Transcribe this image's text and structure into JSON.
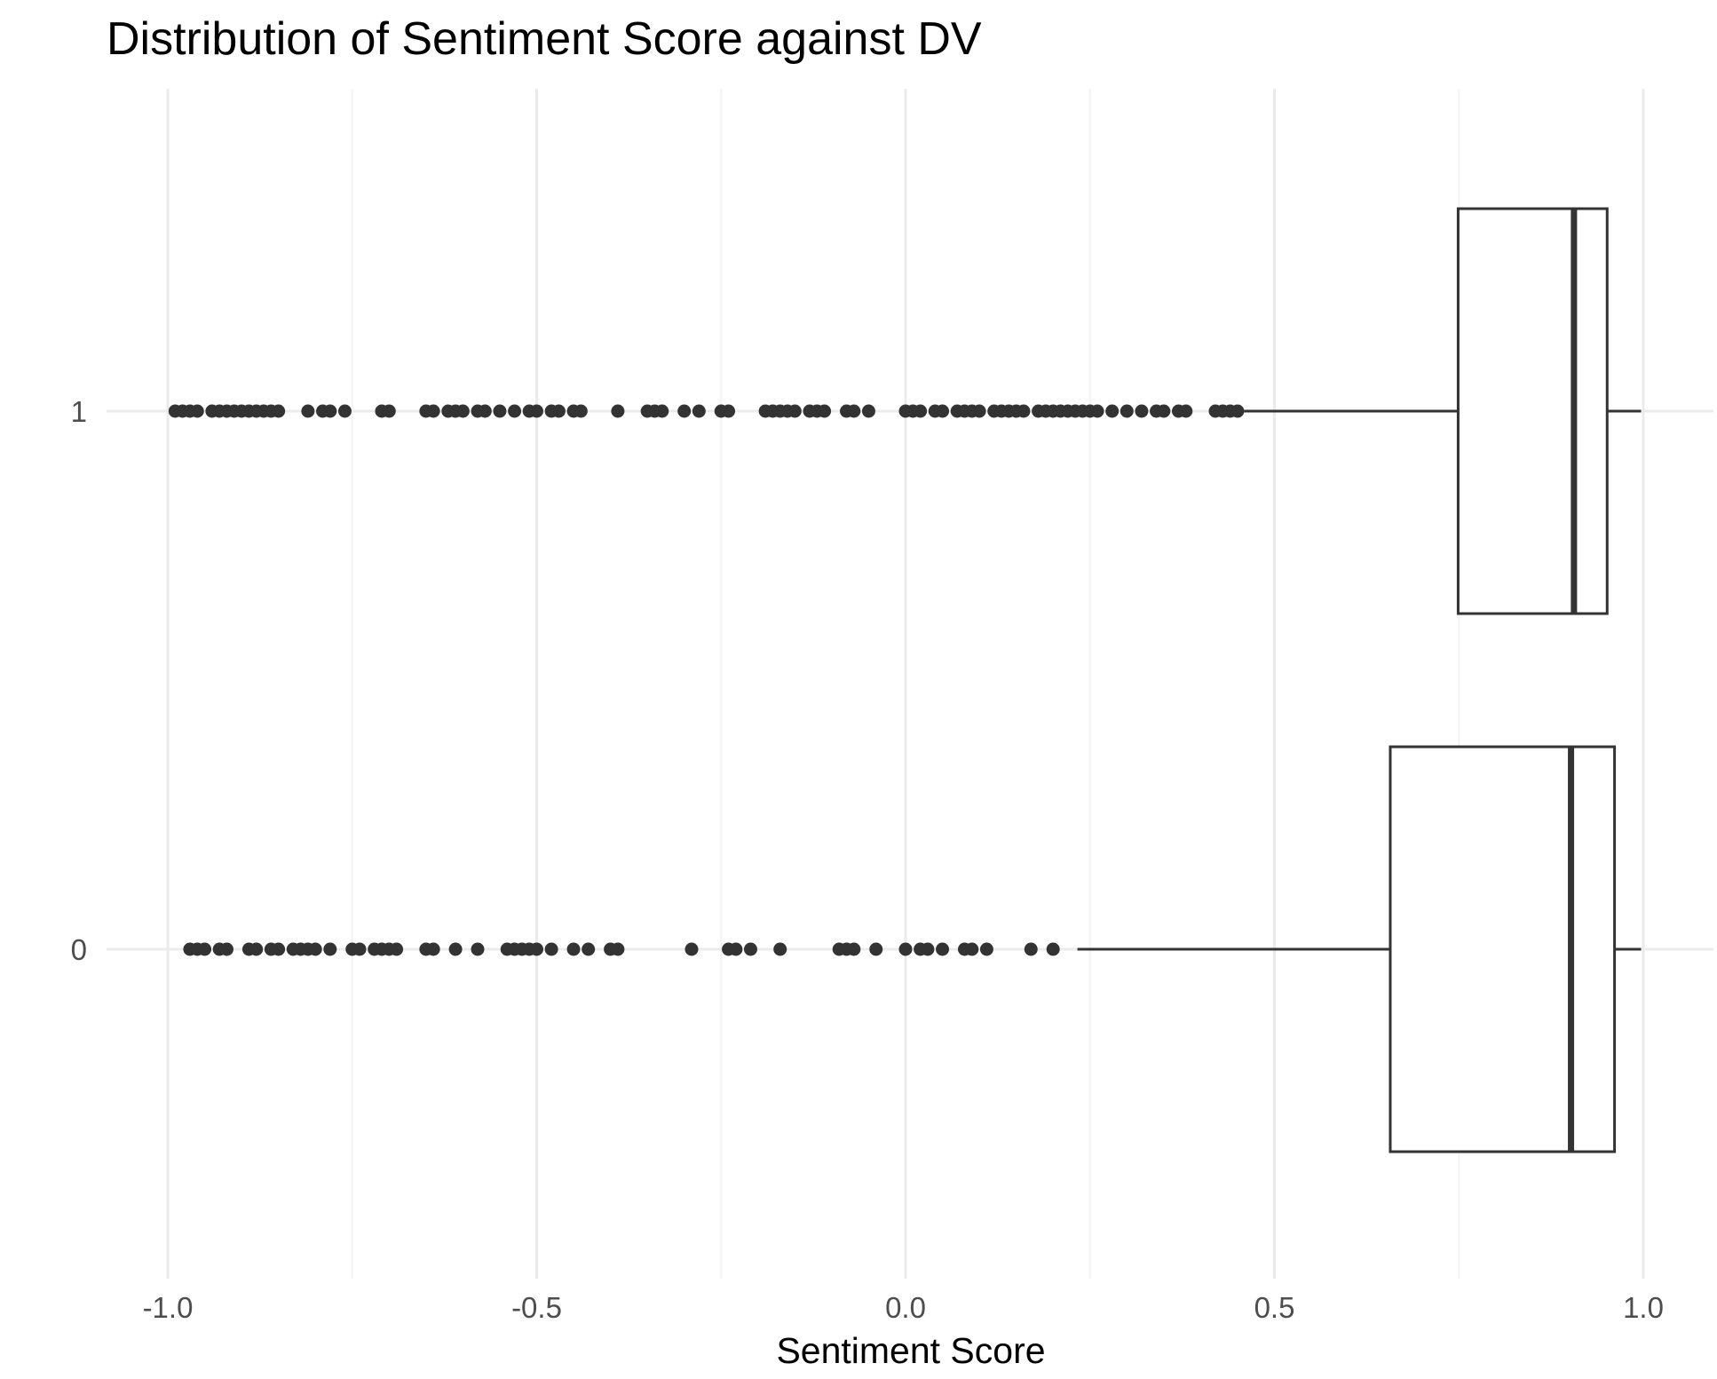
{
  "chart_data": {
    "type": "boxplot",
    "title": "Distribution of Sentiment Score against DV",
    "xlabel": "Sentiment Score",
    "ylabel": "",
    "orientation": "horizontal",
    "xlim": [
      -1.08,
      1.0
    ],
    "x_ticks": [
      -1.0,
      -0.5,
      0.0,
      0.5,
      1.0
    ],
    "x_tick_labels": [
      "-1.0",
      "-0.5",
      "0.0",
      "0.5",
      "1.0"
    ],
    "categories": [
      "0",
      "1"
    ],
    "grid": true,
    "legend": "none",
    "colors": {
      "box_stroke": "#333333",
      "outlier": "#333333",
      "grid_major": "#ebebeb",
      "grid_minor": "#f3f3f3",
      "axis_text": "#4d4d4d",
      "title": "#000000"
    },
    "boxes": [
      {
        "category": "1",
        "q1": 0.749,
        "median": 0.906,
        "q3": 0.951,
        "whisker_low": 0.459,
        "whisker_high": 0.997,
        "outliers": [
          -0.99,
          -0.98,
          -0.97,
          -0.96,
          -0.94,
          -0.93,
          -0.92,
          -0.91,
          -0.9,
          -0.89,
          -0.88,
          -0.87,
          -0.86,
          -0.85,
          -0.81,
          -0.79,
          -0.78,
          -0.76,
          -0.71,
          -0.7,
          -0.65,
          -0.64,
          -0.62,
          -0.61,
          -0.6,
          -0.58,
          -0.57,
          -0.55,
          -0.53,
          -0.51,
          -0.5,
          -0.48,
          -0.47,
          -0.45,
          -0.44,
          -0.39,
          -0.35,
          -0.34,
          -0.33,
          -0.3,
          -0.28,
          -0.25,
          -0.24,
          -0.19,
          -0.18,
          -0.17,
          -0.16,
          -0.15,
          -0.13,
          -0.12,
          -0.11,
          -0.08,
          -0.07,
          -0.05,
          0.0,
          0.01,
          0.02,
          0.04,
          0.05,
          0.07,
          0.08,
          0.09,
          0.1,
          0.12,
          0.13,
          0.14,
          0.15,
          0.16,
          0.18,
          0.19,
          0.2,
          0.21,
          0.22,
          0.23,
          0.24,
          0.25,
          0.26,
          0.28,
          0.3,
          0.32,
          0.34,
          0.35,
          0.37,
          0.38,
          0.42,
          0.43,
          0.44,
          0.45
        ]
      },
      {
        "category": "0",
        "q1": 0.657,
        "median": 0.902,
        "q3": 0.961,
        "whisker_low": 0.233,
        "whisker_high": 0.997,
        "outliers": [
          -0.97,
          -0.96,
          -0.95,
          -0.93,
          -0.92,
          -0.89,
          -0.88,
          -0.86,
          -0.85,
          -0.83,
          -0.82,
          -0.81,
          -0.8,
          -0.78,
          -0.75,
          -0.74,
          -0.72,
          -0.71,
          -0.7,
          -0.69,
          -0.65,
          -0.64,
          -0.61,
          -0.58,
          -0.54,
          -0.53,
          -0.52,
          -0.51,
          -0.5,
          -0.48,
          -0.45,
          -0.43,
          -0.4,
          -0.39,
          -0.29,
          -0.24,
          -0.23,
          -0.21,
          -0.17,
          -0.09,
          -0.08,
          -0.07,
          -0.04,
          0.0,
          0.02,
          0.03,
          0.05,
          0.08,
          0.09,
          0.11,
          0.17,
          0.2
        ]
      }
    ]
  }
}
